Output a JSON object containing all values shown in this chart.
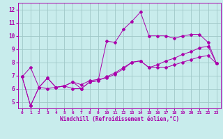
{
  "xlabel": "Windchill (Refroidissement éolien,°C)",
  "bg_color": "#c8ecec",
  "grid_color": "#a0c8c8",
  "line_color": "#aa00aa",
  "xlim": [
    -0.5,
    23.5
  ],
  "ylim": [
    4.5,
    12.5
  ],
  "xticks": [
    0,
    1,
    2,
    3,
    4,
    5,
    6,
    7,
    8,
    9,
    10,
    11,
    12,
    13,
    14,
    15,
    16,
    17,
    18,
    19,
    20,
    21,
    22,
    23
  ],
  "yticks": [
    5,
    6,
    7,
    8,
    9,
    10,
    11,
    12
  ],
  "line1_x": [
    0,
    1,
    2,
    3,
    4,
    5,
    6,
    7,
    8,
    9,
    10,
    11,
    12,
    13,
    14,
    15,
    16,
    17,
    18,
    19,
    20,
    21,
    22,
    23
  ],
  "line1_y": [
    6.9,
    7.6,
    6.1,
    6.8,
    6.1,
    6.2,
    6.5,
    6.3,
    6.6,
    6.7,
    6.8,
    7.1,
    7.5,
    8.0,
    8.1,
    7.6,
    7.6,
    7.6,
    7.8,
    8.0,
    8.2,
    8.4,
    8.5,
    7.9
  ],
  "line2_x": [
    0,
    1,
    2,
    3,
    4,
    5,
    6,
    7,
    8,
    9,
    10,
    11,
    12,
    13,
    14,
    15,
    16,
    17,
    18,
    19,
    20,
    21,
    22,
    23
  ],
  "line2_y": [
    6.9,
    4.7,
    6.1,
    6.8,
    6.1,
    6.2,
    6.0,
    6.0,
    6.5,
    6.6,
    9.6,
    9.5,
    10.5,
    11.1,
    11.8,
    10.0,
    10.0,
    10.0,
    9.8,
    10.0,
    10.1,
    10.1,
    9.5,
    7.9
  ],
  "line3_x": [
    0,
    1,
    2,
    3,
    4,
    5,
    6,
    7,
    8,
    9,
    10,
    11,
    12,
    13,
    14,
    15,
    16,
    17,
    18,
    19,
    20,
    21,
    22,
    23
  ],
  "line3_y": [
    6.9,
    4.7,
    6.1,
    6.0,
    6.1,
    6.2,
    6.5,
    6.0,
    6.5,
    6.6,
    6.9,
    7.2,
    7.6,
    8.0,
    8.1,
    7.6,
    7.8,
    8.1,
    8.3,
    8.6,
    8.8,
    9.1,
    9.2,
    7.9
  ],
  "tick_fontsize": 5,
  "xlabel_fontsize": 5.5
}
